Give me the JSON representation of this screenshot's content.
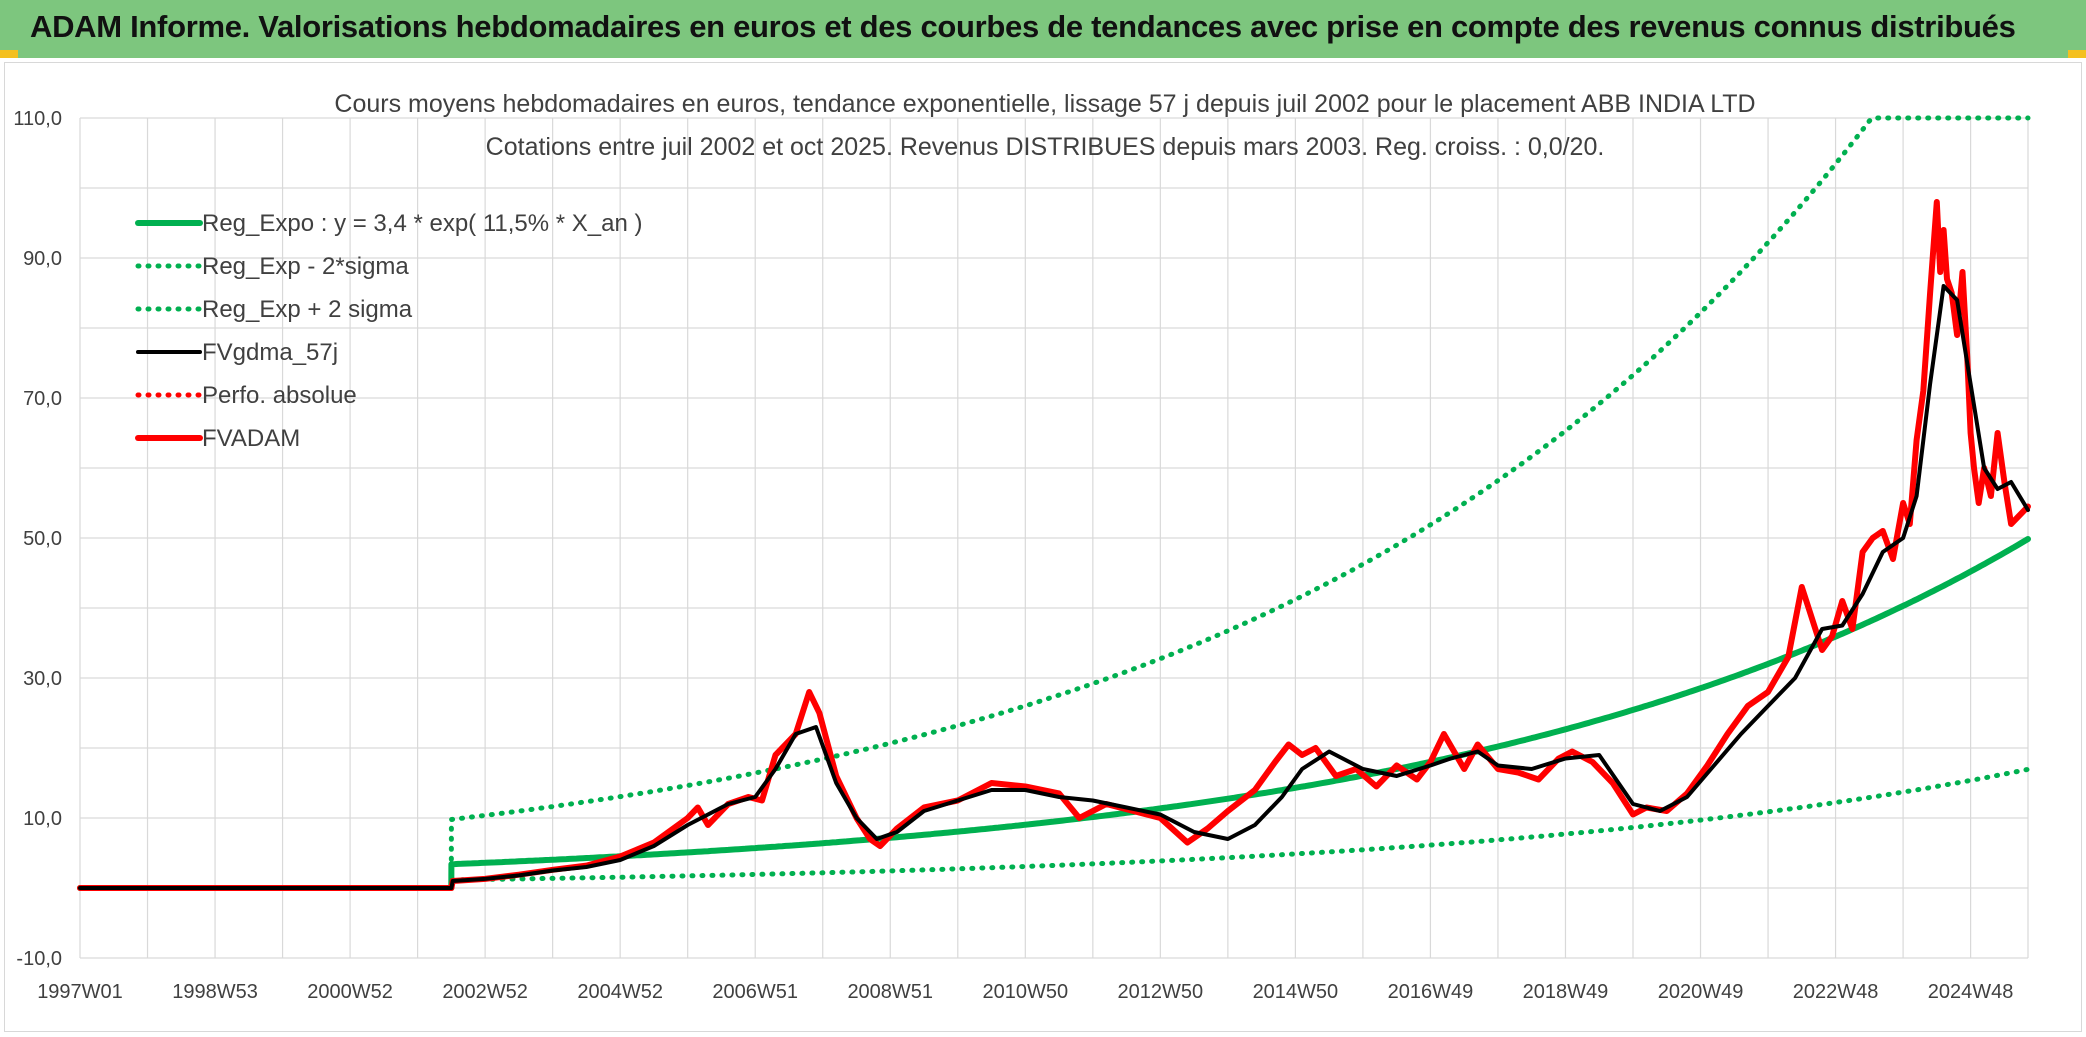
{
  "banner": {
    "title": "ADAM Informe. Valorisations hebdomadaires en euros et des courbes de tendances avec prise en compte des revenus connus distribués"
  },
  "colors": {
    "banner_bg": "#7dc67e",
    "green_series": "#00b050",
    "black_series": "#000000",
    "red_series": "#ff0000",
    "grid": "#d9d9d9",
    "text": "#404040"
  },
  "chart_data": {
    "type": "line",
    "title": "Cours moyens hebdomadaires en euros, tendance exponentielle, lissage 57 j depuis juil 2002 pour le placement ABB INDIA LTD",
    "subtitle": "Cotations entre juil 2002 et oct 2025. Revenus DISTRIBUES depuis mars 2003. Reg. croiss. : 0,0/20.",
    "xlabel": "",
    "ylabel": "",
    "ylim": [
      -10,
      110
    ],
    "xlim": [
      1997.0,
      2025.85
    ],
    "y_ticks": [
      "-10,0",
      "10,0",
      "30,0",
      "50,0",
      "70,0",
      "90,0",
      "110,0"
    ],
    "y_tick_values": [
      -10,
      10,
      30,
      50,
      70,
      90,
      110
    ],
    "x_ticks": [
      "1997W01",
      "1998W53",
      "2000W52",
      "2002W52",
      "2004W52",
      "2006W51",
      "2008W51",
      "2010W50",
      "2012W50",
      "2014W50",
      "2016W49",
      "2018W49",
      "2020W49",
      "2022W48",
      "2024W48"
    ],
    "x_tick_years": [
      1997.0,
      1999.0,
      2001.0,
      2003.0,
      2005.0,
      2007.0,
      2009.0,
      2011.0,
      2013.0,
      2015.0,
      2017.0,
      2019.0,
      2021.0,
      2023.0,
      2025.0
    ],
    "grid": true,
    "legend_position": "top-left",
    "regression": {
      "start_year": 2002.5,
      "a": 3.4,
      "rate": 0.115,
      "sigma_factor_low": 0.34,
      "sigma_factor_high": 2.88,
      "pre_start_value": 0
    },
    "series": [
      {
        "name": "Reg_Expo : y = 3,4 * exp( 11,5% *  X_an )",
        "style": "solid-thick",
        "color": "#00b050"
      },
      {
        "name": "Reg_Exp - 2*sigma",
        "style": "dotted",
        "color": "#00b050"
      },
      {
        "name": "Reg_Exp + 2 sigma",
        "style": "dotted",
        "color": "#00b050"
      },
      {
        "name": "FVgdma_57j",
        "style": "solid",
        "color": "#000000",
        "x": [
          1997.0,
          2002.5,
          2002.52,
          2003.0,
          2003.5,
          2004.0,
          2004.5,
          2005.0,
          2005.5,
          2006.0,
          2006.3,
          2006.6,
          2007.0,
          2007.3,
          2007.6,
          2007.9,
          2008.2,
          2008.5,
          2008.8,
          2009.1,
          2009.5,
          2010.0,
          2010.5,
          2011.0,
          2011.5,
          2012.0,
          2012.5,
          2013.0,
          2013.5,
          2014.0,
          2014.4,
          2014.8,
          2015.1,
          2015.5,
          2016.0,
          2016.5,
          2017.0,
          2017.3,
          2017.7,
          2018.0,
          2018.5,
          2019.0,
          2019.5,
          2020.0,
          2020.4,
          2020.8,
          2021.2,
          2021.6,
          2022.0,
          2022.4,
          2022.8,
          2023.1,
          2023.4,
          2023.7,
          2024.0,
          2024.2,
          2024.4,
          2024.6,
          2024.8,
          2025.0,
          2025.2,
          2025.4,
          2025.6,
          2025.85
        ],
        "values": [
          0,
          0,
          1.0,
          1.3,
          1.8,
          2.5,
          3.0,
          4.0,
          6.0,
          9.0,
          10.5,
          12.0,
          13.0,
          17.0,
          22.0,
          23.0,
          15.0,
          10.0,
          7.0,
          8.0,
          11.0,
          12.5,
          14.0,
          14.0,
          13.0,
          12.5,
          11.5,
          10.5,
          8.0,
          7.0,
          9.0,
          13.0,
          17.0,
          19.5,
          17.0,
          16.0,
          17.5,
          18.5,
          19.5,
          17.5,
          17.0,
          18.5,
          19.0,
          12.0,
          11.0,
          13.0,
          17.5,
          22.0,
          26.0,
          30.0,
          37.0,
          37.5,
          42.0,
          48.0,
          50.0,
          56.0,
          72.0,
          86.0,
          84.0,
          72.0,
          60.0,
          57.0,
          58.0,
          54.0
        ]
      },
      {
        "name": "Perfo. absolue",
        "style": "dotted",
        "color": "#ff0000"
      },
      {
        "name": "FVADAM",
        "style": "solid-thick",
        "color": "#ff0000",
        "x": [
          1997.0,
          2002.5,
          2002.52,
          2003.0,
          2003.5,
          2004.0,
          2004.5,
          2005.0,
          2005.5,
          2006.0,
          2006.15,
          2006.3,
          2006.6,
          2006.9,
          2007.1,
          2007.3,
          2007.6,
          2007.8,
          2007.95,
          2008.2,
          2008.5,
          2008.7,
          2008.85,
          2009.1,
          2009.5,
          2010.0,
          2010.5,
          2011.0,
          2011.5,
          2011.8,
          2012.2,
          2012.6,
          2013.0,
          2013.4,
          2013.7,
          2014.0,
          2014.4,
          2014.7,
          2014.9,
          2015.1,
          2015.3,
          2015.6,
          2015.9,
          2016.2,
          2016.5,
          2016.8,
          2017.0,
          2017.2,
          2017.5,
          2017.7,
          2018.0,
          2018.3,
          2018.6,
          2018.9,
          2019.1,
          2019.4,
          2019.7,
          2020.0,
          2020.2,
          2020.5,
          2020.8,
          2021.1,
          2021.4,
          2021.7,
          2022.0,
          2022.3,
          2022.5,
          2022.6,
          2022.8,
          2022.95,
          2023.1,
          2023.25,
          2023.4,
          2023.55,
          2023.7,
          2023.85,
          2024.0,
          2024.1,
          2024.2,
          2024.3,
          2024.4,
          2024.5,
          2024.55,
          2024.6,
          2024.65,
          2024.72,
          2024.8,
          2024.88,
          2024.95,
          2025.0,
          2025.05,
          2025.12,
          2025.2,
          2025.3,
          2025.4,
          2025.5,
          2025.6,
          2025.7,
          2025.85
        ],
        "values": [
          0,
          0,
          1.0,
          1.3,
          1.9,
          2.6,
          3.2,
          4.5,
          6.5,
          10.0,
          11.5,
          9.0,
          12.0,
          13.0,
          12.5,
          19.0,
          22.0,
          28.0,
          25.0,
          16.0,
          10.0,
          7.0,
          6.0,
          8.5,
          11.5,
          12.5,
          15.0,
          14.5,
          13.5,
          10.0,
          12.0,
          11.0,
          10.0,
          6.5,
          8.5,
          11.0,
          14.0,
          18.0,
          20.5,
          19.0,
          20.0,
          16.0,
          17.0,
          14.5,
          17.5,
          15.5,
          18.0,
          22.0,
          17.0,
          20.5,
          17.0,
          16.5,
          15.5,
          18.5,
          19.5,
          18.0,
          15.0,
          10.5,
          11.5,
          11.0,
          13.5,
          17.5,
          22.0,
          26.0,
          28.0,
          33.0,
          43.0,
          40.0,
          34.0,
          36.0,
          41.0,
          37.0,
          48.0,
          50.0,
          51.0,
          47.0,
          55.0,
          52.0,
          64.0,
          71.0,
          85.0,
          98.0,
          88.0,
          94.0,
          87.0,
          85.0,
          79.0,
          88.0,
          76.0,
          65.0,
          60.0,
          55.0,
          60.0,
          56.0,
          65.0,
          58.0,
          52.0,
          53.0,
          54.5
        ]
      }
    ]
  }
}
